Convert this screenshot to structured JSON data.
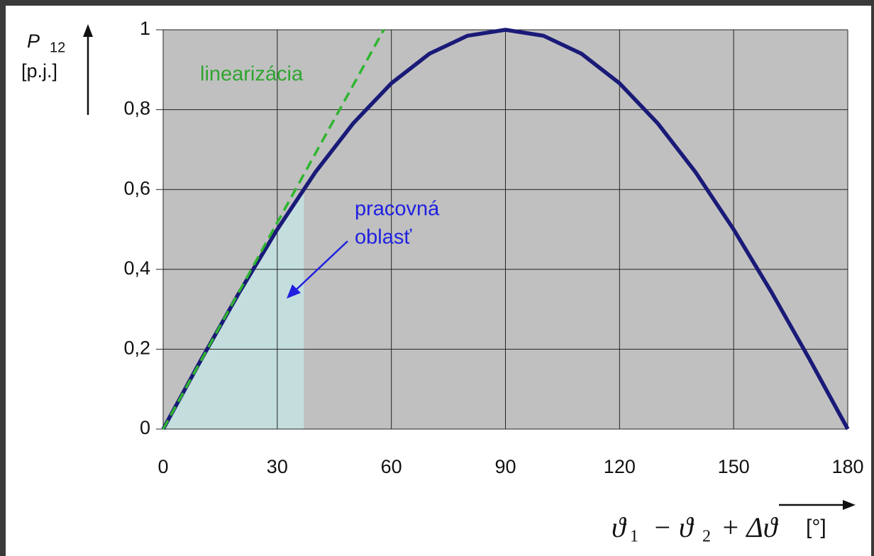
{
  "chart_data": {
    "type": "line",
    "x": [
      0,
      10,
      20,
      30,
      40,
      50,
      60,
      70,
      80,
      90,
      100,
      110,
      120,
      130,
      140,
      150,
      160,
      170,
      180
    ],
    "series": [
      {
        "color": "#1a1a78",
        "values": [
          0,
          0.174,
          0.342,
          0.5,
          0.643,
          0.766,
          0.866,
          0.94,
          0.985,
          1,
          0.985,
          0.94,
          0.866,
          0.766,
          0.643,
          0.5,
          0.342,
          0.174,
          0
        ]
      },
      {
        "color": "#2fb52f",
        "x": [
          0,
          58
        ],
        "values": [
          0,
          1
        ],
        "dashed": true
      }
    ],
    "region": {
      "color": "#c4dede",
      "x": [
        0,
        10,
        20,
        30,
        37,
        37
      ],
      "values": [
        0,
        0.174,
        0.342,
        0.5,
        0.602,
        0
      ]
    },
    "xlim": [
      0,
      180
    ],
    "xticks": [
      0,
      30,
      60,
      90,
      120,
      150,
      180
    ],
    "ylim": [
      0,
      1
    ],
    "yticks": [
      0,
      {
        "value": 0.2,
        "label": "0,2"
      },
      {
        "value": 0.4,
        "label": "0,4"
      },
      {
        "value": 0.6,
        "label": "0,6"
      },
      {
        "value": 0.8,
        "label": "0,8"
      },
      1
    ],
    "grid": true,
    "y_label": {
      "symbol": "P",
      "subscript": "12",
      "unit": "[p.j.]"
    },
    "x_label": {
      "parts": [
        "ϑ",
        "1",
        "− ϑ",
        "2",
        "+ Δϑ",
        "[°]"
      ]
    },
    "annotations": {
      "linearization": "linearizácia",
      "region_line1": "pracovná",
      "region_line2": "oblasť"
    }
  }
}
